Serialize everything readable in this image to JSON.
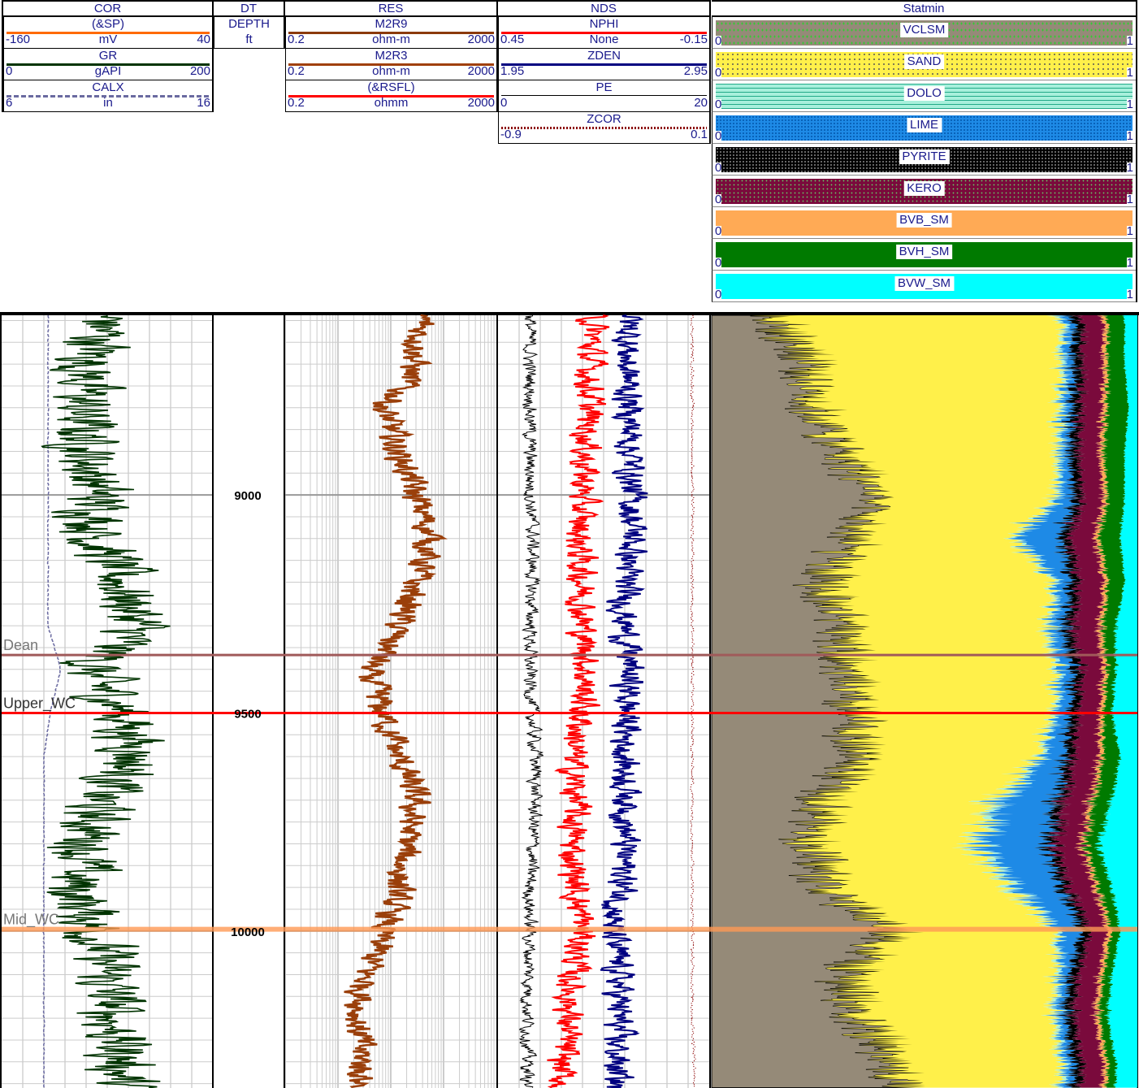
{
  "tracks": [
    {
      "title": "COR",
      "curves": [
        {
          "name": "(&SP)",
          "unit": "mV",
          "min": "-160",
          "max": "40",
          "color": "#ff6a00",
          "style": "solid"
        },
        {
          "name": "GR",
          "unit": "gAPI",
          "min": "0",
          "max": "200",
          "color": "#003300",
          "style": "solid"
        },
        {
          "name": "CALX",
          "unit": "in",
          "min": "6",
          "max": "16",
          "color": "#6a6aa0",
          "style": "dashed"
        }
      ]
    },
    {
      "title": "DT",
      "curves": [
        {
          "name": "DEPTH",
          "unit": "ft"
        }
      ]
    },
    {
      "title": "RES",
      "curves": [
        {
          "name": "M2R9",
          "unit": "ohm-m",
          "min": "0.2",
          "max": "2000",
          "color": "#8b3a0a",
          "style": "solid"
        },
        {
          "name": "M2R3",
          "unit": "ohm-m",
          "min": "0.2",
          "max": "2000",
          "color": "#a0400a",
          "style": "solid"
        },
        {
          "name": "(&RSFL)",
          "unit": "ohmm",
          "min": "0.2",
          "max": "2000",
          "color": "#ff0000",
          "style": "solid"
        }
      ]
    },
    {
      "title": "NDS",
      "curves": [
        {
          "name": "NPHI",
          "unit": "None",
          "min": "0.45",
          "max": "-0.15",
          "color": "#ff0000",
          "style": "solid"
        },
        {
          "name": "ZDEN",
          "unit": "",
          "min": "1.95",
          "max": "2.95",
          "color": "#000080",
          "style": "solid"
        },
        {
          "name": "PE",
          "unit": "",
          "min": "0",
          "max": "20",
          "color": "#000000",
          "style": "solid"
        },
        {
          "name": "ZCOR",
          "unit": "",
          "min": "-0.9",
          "max": "0.1",
          "color": "#8b0000",
          "style": "dotted"
        }
      ]
    },
    {
      "title": "Statmin",
      "curves": [
        {
          "name": "VCLSM",
          "min": "0",
          "max": "1",
          "color": "#958a78"
        },
        {
          "name": "SAND",
          "min": "0",
          "max": "1",
          "color": "#fff04a"
        },
        {
          "name": "DOLO",
          "min": "0",
          "max": "1",
          "color": "#a8f0dc"
        },
        {
          "name": "LIME",
          "min": "0",
          "max": "1",
          "color": "#1e8ae6"
        },
        {
          "name": "PYRITE",
          "min": "0",
          "max": "1",
          "color": "#000000"
        },
        {
          "name": "KERO",
          "min": "0",
          "max": "1",
          "color": "#7a0a3c"
        },
        {
          "name": "BVB_SM",
          "min": "0",
          "max": "1",
          "color": "#ffaa55"
        },
        {
          "name": "BVH_SM",
          "min": "0",
          "max": "1",
          "color": "#007a00"
        },
        {
          "name": "BVW_SM",
          "min": "0",
          "max": "1",
          "color": "#00ffff"
        }
      ]
    }
  ],
  "chart_data": {
    "type": "line",
    "depth_unit": "ft",
    "depth_range": [
      8588,
      10360
    ],
    "depth_ticks": [
      "9000",
      "9500",
      "10000"
    ],
    "res_scale": "log",
    "grid": true,
    "tops": [
      {
        "name": "Dean",
        "depth": 9367,
        "color": "#a05a5a"
      },
      {
        "name": "Upper_WC",
        "depth": 9500,
        "color": "#ff0000"
      },
      {
        "name": "Mid_WC",
        "depth": 9996,
        "color": "#ff9955"
      }
    ],
    "depth": [
      8600,
      8700,
      8800,
      8900,
      9000,
      9100,
      9200,
      9300,
      9400,
      9500,
      9600,
      9700,
      9800,
      9900,
      10000,
      10100,
      10200,
      10300
    ],
    "GR": [
      98,
      83,
      75,
      81,
      91,
      91,
      114,
      129,
      83,
      114,
      129,
      91,
      83,
      68,
      91,
      98,
      106,
      114
    ],
    "CALX": [
      8.2,
      8.2,
      8.2,
      8.2,
      8.2,
      8.2,
      8.2,
      8.2,
      8.8,
      8.3,
      8.0,
      8.0,
      8.0,
      8.0,
      8.0,
      8.0,
      8.0,
      8.0
    ],
    "M2R9": [
      80,
      56,
      13.6,
      27,
      56,
      113,
      56,
      27,
      6.7,
      13.6,
      27,
      56,
      39,
      27,
      13.6,
      6.7,
      4.7,
      5.6
    ],
    "NPHI": [
      0.18,
      0.19,
      0.19,
      0.2,
      0.21,
      0.22,
      0.21,
      0.21,
      0.2,
      0.21,
      0.24,
      0.23,
      0.24,
      0.23,
      0.21,
      0.24,
      0.25,
      0.27
    ],
    "ZDEN": [
      2.57,
      2.56,
      2.57,
      2.58,
      2.58,
      2.59,
      2.55,
      2.55,
      2.57,
      2.56,
      2.55,
      2.56,
      2.55,
      2.54,
      2.49,
      2.52,
      2.52,
      2.51
    ],
    "PE": [
      3.0,
      3.0,
      3.1,
      3.0,
      3.1,
      3.3,
      3.2,
      3.1,
      3.0,
      3.2,
      3.6,
      3.5,
      3.3,
      3.0,
      3.0,
      2.9,
      2.8,
      2.8
    ],
    "ZCOR": [
      0.02,
      0.02,
      0.02,
      0.02,
      0.02,
      0.02,
      0.02,
      0.02,
      0.02,
      0.02,
      0.02,
      0.02,
      0.02,
      0.02,
      0.02,
      0.02,
      0.02,
      0.03
    ],
    "statmin": {
      "VCLSM": [
        0.16,
        0.24,
        0.24,
        0.31,
        0.39,
        0.33,
        0.26,
        0.33,
        0.31,
        0.33,
        0.35,
        0.27,
        0.24,
        0.27,
        0.43,
        0.31,
        0.35,
        0.43
      ],
      "SAND": [
        0.66,
        0.58,
        0.58,
        0.5,
        0.42,
        0.38,
        0.54,
        0.46,
        0.5,
        0.47,
        0.42,
        0.4,
        0.38,
        0.43,
        0.38,
        0.5,
        0.45,
        0.39
      ],
      "DOLO": [
        0.01,
        0.01,
        0.01,
        0.01,
        0.01,
        0.01,
        0.01,
        0.01,
        0.01,
        0.01,
        0.01,
        0.02,
        0.02,
        0.02,
        0.01,
        0.01,
        0.01,
        0.01
      ],
      "LIME": [
        0.02,
        0.02,
        0.02,
        0.02,
        0.03,
        0.1,
        0.03,
        0.03,
        0.03,
        0.03,
        0.05,
        0.12,
        0.15,
        0.1,
        0.05,
        0.02,
        0.02,
        0.02
      ],
      "PYRITE": [
        0.02,
        0.02,
        0.02,
        0.02,
        0.02,
        0.02,
        0.02,
        0.02,
        0.02,
        0.02,
        0.02,
        0.02,
        0.02,
        0.02,
        0.02,
        0.02,
        0.02,
        0.02
      ],
      "KERO": [
        0.05,
        0.05,
        0.05,
        0.05,
        0.05,
        0.06,
        0.06,
        0.06,
        0.05,
        0.05,
        0.06,
        0.06,
        0.06,
        0.06,
        0.04,
        0.05,
        0.05,
        0.05
      ],
      "BVB_SM": [
        0.01,
        0.01,
        0.01,
        0.01,
        0.01,
        0.01,
        0.01,
        0.01,
        0.01,
        0.01,
        0.01,
        0.01,
        0.01,
        0.01,
        0.01,
        0.01,
        0.01,
        0.01
      ],
      "BVH_SM": [
        0.04,
        0.04,
        0.05,
        0.05,
        0.04,
        0.05,
        0.04,
        0.03,
        0.02,
        0.02,
        0.04,
        0.04,
        0.03,
        0.03,
        0.02,
        0.02,
        0.02,
        0.02
      ],
      "BVW_SM": [
        0.03,
        0.03,
        0.02,
        0.03,
        0.03,
        0.04,
        0.03,
        0.05,
        0.05,
        0.06,
        0.04,
        0.06,
        0.09,
        0.06,
        0.04,
        0.06,
        0.07,
        0.05
      ]
    }
  }
}
